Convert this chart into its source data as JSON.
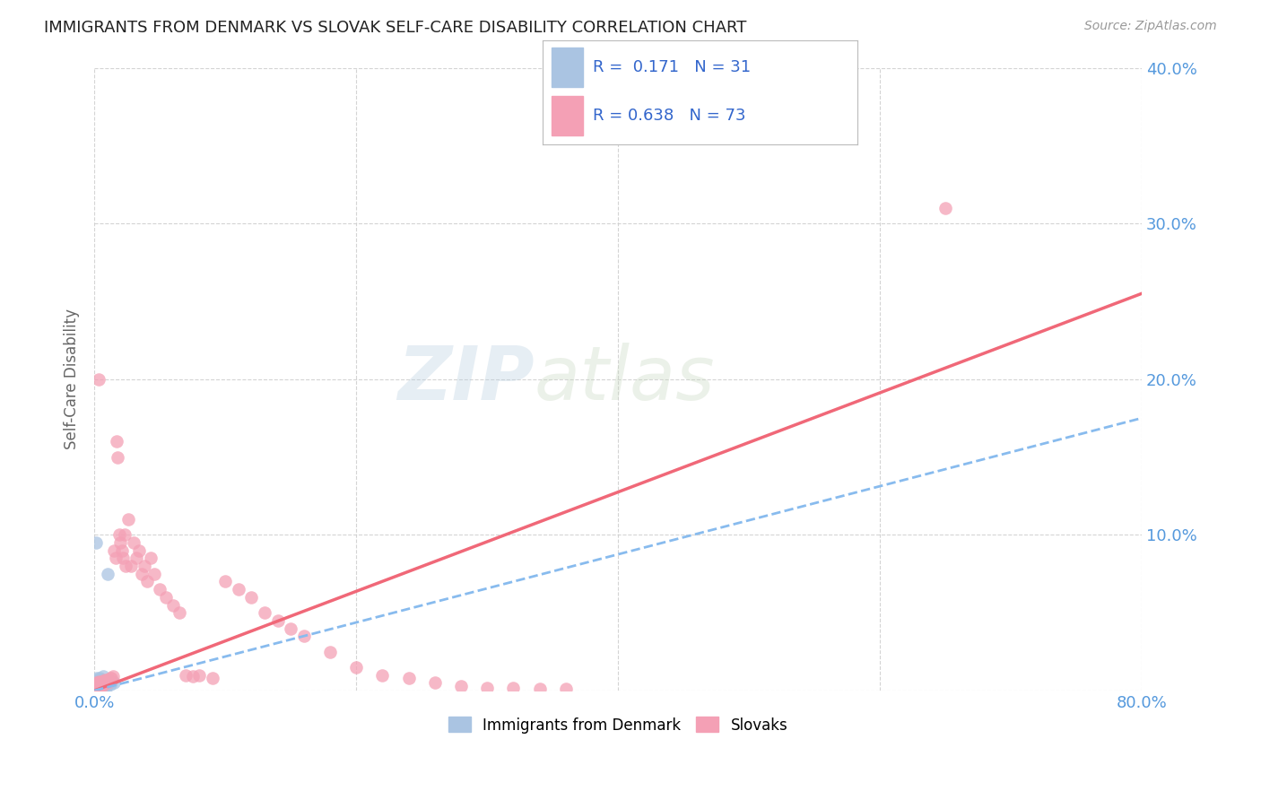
{
  "title": "IMMIGRANTS FROM DENMARK VS SLOVAK SELF-CARE DISABILITY CORRELATION CHART",
  "source": "Source: ZipAtlas.com",
  "ylabel": "Self-Care Disability",
  "xlim": [
    0.0,
    0.8
  ],
  "ylim": [
    0.0,
    0.4
  ],
  "xticks": [
    0.0,
    0.2,
    0.4,
    0.6,
    0.8
  ],
  "yticks": [
    0.0,
    0.1,
    0.2,
    0.3,
    0.4
  ],
  "xticklabels": [
    "0.0%",
    "",
    "",
    "",
    "80.0%"
  ],
  "yticklabels_right": [
    "",
    "10.0%",
    "20.0%",
    "30.0%",
    "40.0%"
  ],
  "legend1_R": "0.171",
  "legend1_N": "31",
  "legend2_R": "0.638",
  "legend2_N": "73",
  "blue_color": "#aac4e2",
  "pink_color": "#f4a0b5",
  "blue_line_color": "#88bbee",
  "pink_line_color": "#f06878",
  "watermark_zip": "ZIP",
  "watermark_atlas": "atlas",
  "background_color": "#ffffff",
  "grid_color": "#d0d0d0",
  "tick_color": "#5599dd",
  "blue_scatter_x": [
    0.001,
    0.002,
    0.002,
    0.003,
    0.003,
    0.004,
    0.004,
    0.004,
    0.005,
    0.005,
    0.005,
    0.006,
    0.006,
    0.007,
    0.007,
    0.008,
    0.008,
    0.009,
    0.009,
    0.01,
    0.011,
    0.012,
    0.013,
    0.015,
    0.002,
    0.003,
    0.004,
    0.006,
    0.007,
    0.001,
    0.01
  ],
  "blue_scatter_y": [
    0.002,
    0.003,
    0.004,
    0.002,
    0.005,
    0.003,
    0.006,
    0.002,
    0.003,
    0.005,
    0.002,
    0.004,
    0.002,
    0.003,
    0.004,
    0.004,
    0.003,
    0.005,
    0.002,
    0.004,
    0.005,
    0.004,
    0.006,
    0.005,
    0.008,
    0.007,
    0.008,
    0.007,
    0.009,
    0.095,
    0.075
  ],
  "pink_scatter_x": [
    0.001,
    0.001,
    0.002,
    0.002,
    0.002,
    0.003,
    0.003,
    0.003,
    0.004,
    0.004,
    0.004,
    0.005,
    0.005,
    0.006,
    0.006,
    0.007,
    0.007,
    0.008,
    0.008,
    0.009,
    0.01,
    0.01,
    0.011,
    0.012,
    0.013,
    0.014,
    0.015,
    0.016,
    0.017,
    0.018,
    0.019,
    0.02,
    0.021,
    0.022,
    0.023,
    0.024,
    0.026,
    0.028,
    0.03,
    0.032,
    0.034,
    0.036,
    0.038,
    0.04,
    0.043,
    0.046,
    0.05,
    0.055,
    0.06,
    0.065,
    0.07,
    0.075,
    0.08,
    0.09,
    0.1,
    0.11,
    0.12,
    0.13,
    0.14,
    0.15,
    0.16,
    0.18,
    0.2,
    0.22,
    0.24,
    0.26,
    0.28,
    0.3,
    0.32,
    0.34,
    0.36,
    0.65,
    0.003
  ],
  "pink_scatter_y": [
    0.002,
    0.004,
    0.002,
    0.003,
    0.005,
    0.003,
    0.004,
    0.006,
    0.003,
    0.005,
    0.002,
    0.004,
    0.006,
    0.005,
    0.003,
    0.006,
    0.004,
    0.007,
    0.005,
    0.006,
    0.005,
    0.007,
    0.007,
    0.008,
    0.008,
    0.009,
    0.09,
    0.085,
    0.16,
    0.15,
    0.1,
    0.095,
    0.09,
    0.085,
    0.1,
    0.08,
    0.11,
    0.08,
    0.095,
    0.085,
    0.09,
    0.075,
    0.08,
    0.07,
    0.085,
    0.075,
    0.065,
    0.06,
    0.055,
    0.05,
    0.01,
    0.009,
    0.01,
    0.008,
    0.07,
    0.065,
    0.06,
    0.05,
    0.045,
    0.04,
    0.035,
    0.025,
    0.015,
    0.01,
    0.008,
    0.005,
    0.003,
    0.002,
    0.002,
    0.001,
    0.001,
    0.31,
    0.2
  ],
  "pink_line_x0": 0.0,
  "pink_line_y0": 0.0,
  "pink_line_x1": 0.8,
  "pink_line_y1": 0.255,
  "blue_line_x0": 0.0,
  "blue_line_y0": 0.0,
  "blue_line_x1": 0.8,
  "blue_line_y1": 0.175
}
